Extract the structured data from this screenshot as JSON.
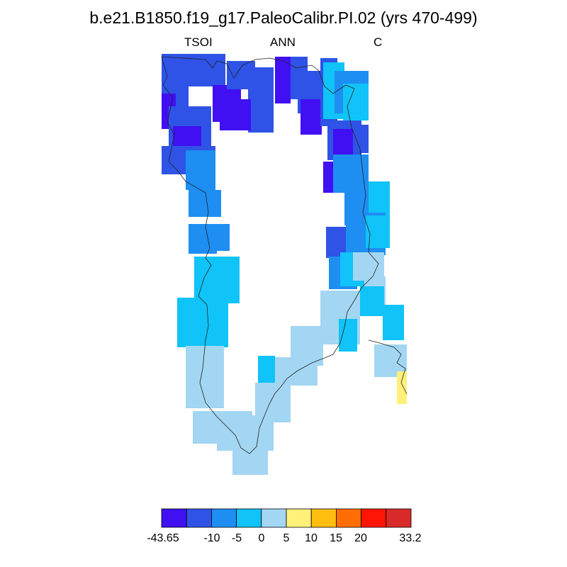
{
  "title": "b.e21.B1850.f19_g17.PaleoCalibr.PI.02 (yrs 470-499)",
  "subtitle_left": "TSOI",
  "subtitle_center": "ANN",
  "subtitle_right": "C",
  "colorbar": {
    "labels": [
      "-43.65",
      "-10",
      "-5",
      "0",
      "5",
      "10",
      "15",
      "20",
      "33.2"
    ],
    "colors": [
      "#4010f2",
      "#2f53e6",
      "#1e8ef2",
      "#10c3f8",
      "#a3d6f2",
      "#fff07a",
      "#ffbe10",
      "#ff6e05",
      "#ff1505",
      "#d92a2a"
    ]
  },
  "region_colors": {
    "violet": "#4010f2",
    "blue": "#2f53e6",
    "mid": "#1e8ef2",
    "cyan": "#10c3f8",
    "pale": "#a3d6f2",
    "yellow": "#fff07a"
  }
}
